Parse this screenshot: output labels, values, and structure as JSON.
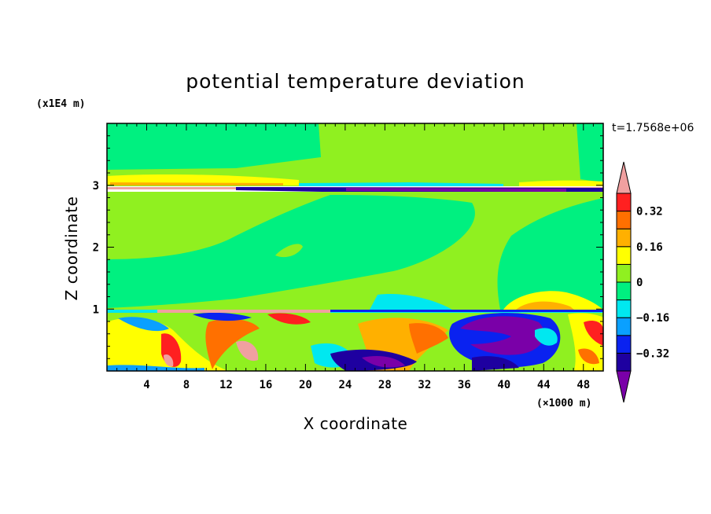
{
  "chart_data": {
    "type": "heatmap",
    "title": "potential temperature deviation",
    "xlabel": "X coordinate",
    "ylabel": "Z coordinate",
    "x_unit": "(×1000 m)",
    "y_unit": "(x1E4 m)",
    "time_label": "t=1.7568e+06",
    "xlim": [
      0,
      50
    ],
    "ylim": [
      0,
      4
    ],
    "x_ticks": [
      4,
      8,
      12,
      16,
      20,
      24,
      28,
      32,
      36,
      40,
      44,
      48
    ],
    "x_tick_labels": [
      "4",
      "8",
      "12",
      "16",
      "20",
      "24",
      "28",
      "32",
      "36",
      "40",
      "44",
      "48"
    ],
    "y_ticks": [
      1,
      2,
      3
    ],
    "y_tick_labels": [
      "1",
      "2",
      "3"
    ],
    "colorbar": {
      "levels": [
        -0.4,
        -0.32,
        -0.24,
        -0.16,
        -0.08,
        0,
        0.08,
        0.16,
        0.24,
        0.32,
        0.4
      ],
      "labeled_levels": [
        0.32,
        0.16,
        0,
        -0.16,
        -0.32
      ],
      "labels": [
        "0.32",
        "0.16",
        "0",
        "−0.16",
        "−0.32"
      ],
      "colors": [
        "#7a00a8",
        "#1e00a0",
        "#0a22f0",
        "#0aa0ff",
        "#00e8f0",
        "#00f080",
        "#90f020",
        "#ffff00",
        "#ffb000",
        "#ff7000",
        "#ff2020",
        "#f0a0a0"
      ]
    },
    "regions": [
      {
        "value": 0.04,
        "desc": "upper background"
      },
      {
        "value": -0.02,
        "desc": "mid-level background"
      },
      {
        "value": 0.2,
        "desc": "band near z=3.05"
      },
      {
        "value": -0.3,
        "desc": "thin layer near z=2.9"
      },
      {
        "value": 0.34,
        "desc": "boundary layer eddies"
      },
      {
        "value": -0.38,
        "desc": "boundary layer cold eddy near x=40"
      }
    ]
  }
}
